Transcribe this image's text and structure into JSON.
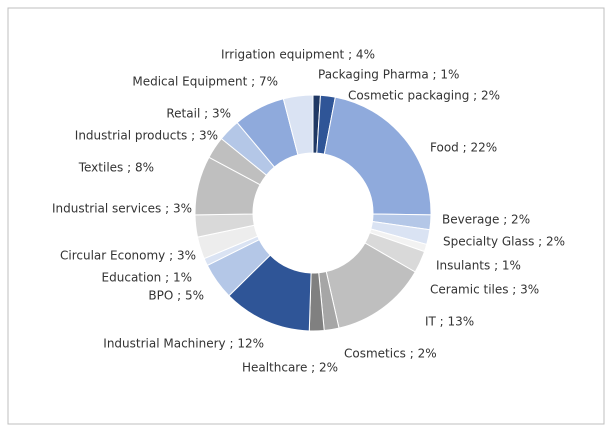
{
  "chart_data": {
    "type": "donut",
    "value_labels": [
      "Packaging Pharma ; 1%",
      "Cosmetic packaging ; 2%",
      "Food ; 22%",
      "Beverage  ; 2%",
      "Specialty Glass ; 2%",
      "Insulants ; 1%",
      "Ceramic tiles ; 3%",
      "IT ; 13%",
      "Cosmetics ; 2%",
      "Healthcare ; 2%",
      "Industrial Machinery ; 12%",
      "BPO ; 5%",
      "Education ; 1%",
      "Circular Economy ; 3%",
      "Industrial services ; 3%",
      "Textiles ; 8%",
      "Industrial products ; 3%",
      "Retail ; 3%",
      "Medical Equipment ; 7%",
      "Irrigation equipment ; 4%"
    ],
    "values": [
      1,
      2,
      22,
      2,
      2,
      1,
      3,
      13,
      2,
      2,
      12,
      5,
      1,
      3,
      3,
      8,
      3,
      3,
      7,
      4
    ],
    "colors": [
      "#1f3864",
      "#2f5597",
      "#8faadc",
      "#b4c7e7",
      "#dae3f3",
      "#f2f2f2",
      "#d9d9d9",
      "#bfbfbf",
      "#a6a6a6",
      "#808080",
      "#2f5597",
      "#b4c7e7",
      "#dae3f3",
      "#ededed",
      "#d9d9d9",
      "#bfbfbf",
      "#bfbfbf",
      "#b4c7e7",
      "#8faadc",
      "#dae3f3"
    ]
  }
}
